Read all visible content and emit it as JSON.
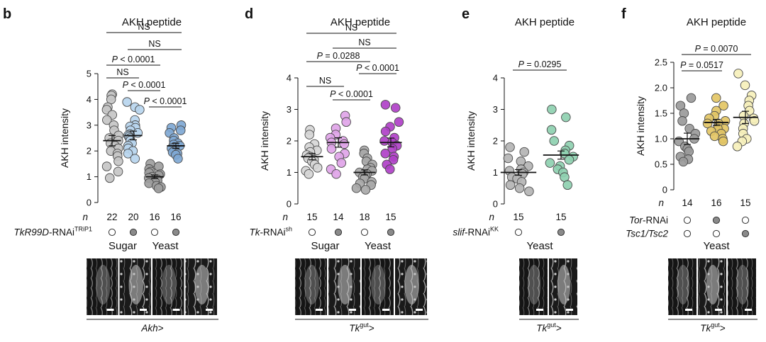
{
  "chart_data": [
    {
      "panel": "b",
      "type": "scatter",
      "title": "AKH peptide",
      "ylabel": "AKH intensity",
      "ylim": [
        0,
        5
      ],
      "yticks": [
        0,
        1,
        2,
        3,
        4,
        5
      ],
      "n_label": "n",
      "genotype_label": "TkR99D-RNAi",
      "genotype_sup": "TRiP1",
      "groups": [
        {
          "name": "Sugar",
          "conditions": [
            0,
            1
          ]
        },
        {
          "name": "Yeast",
          "conditions": [
            2,
            3
          ]
        }
      ],
      "driver": "Akh>",
      "conditions": [
        {
          "n": "22",
          "rnai": false,
          "color": "#c6c6c6",
          "mean": 2.4,
          "sem": 0.2,
          "values": [
            4.2,
            4.15,
            4.0,
            3.7,
            3.6,
            3.4,
            3.2,
            3.0,
            2.8,
            2.6,
            2.5,
            2.4,
            2.3,
            2.2,
            2.1,
            2.0,
            1.9,
            1.8,
            1.6,
            1.4,
            1.2,
            0.95
          ]
        },
        {
          "n": "20",
          "rnai": true,
          "color": "#b7d5ee",
          "mean": 2.6,
          "sem": 0.17,
          "values": [
            3.9,
            3.7,
            3.6,
            3.2,
            3.0,
            2.95,
            2.9,
            2.8,
            2.7,
            2.65,
            2.6,
            2.55,
            2.5,
            2.4,
            2.3,
            2.2,
            2.1,
            2.0,
            1.9,
            1.7
          ]
        },
        {
          "n": "16",
          "rnai": false,
          "color": "#9e9e9e",
          "mean": 1.0,
          "sem": 0.07,
          "values": [
            1.5,
            1.4,
            1.3,
            1.2,
            1.15,
            1.1,
            1.05,
            1.0,
            0.95,
            0.9,
            0.85,
            0.8,
            0.75,
            0.65,
            0.6,
            0.55
          ]
        },
        {
          "n": "16",
          "rnai": true,
          "color": "#7fa8d4",
          "mean": 2.2,
          "sem": 0.1,
          "values": [
            3.0,
            2.9,
            2.8,
            2.7,
            2.5,
            2.4,
            2.3,
            2.25,
            2.2,
            2.15,
            2.1,
            2.0,
            1.95,
            1.9,
            1.85,
            1.7
          ]
        }
      ],
      "comparisons": [
        {
          "a": 0,
          "b": 3,
          "label": "NS"
        },
        {
          "a": 1,
          "b": 3,
          "label": "NS"
        },
        {
          "a": 0,
          "b": 2,
          "label": "P < 0.0001"
        },
        {
          "a": 0,
          "b": 1,
          "label": "NS"
        },
        {
          "a": 1,
          "b": 2,
          "label": "P < 0.0001"
        },
        {
          "a": 2,
          "b": 3,
          "label": "P < 0.0001"
        }
      ]
    },
    {
      "panel": "d",
      "type": "scatter",
      "title": "AKH peptide",
      "ylabel": "AKH intensity",
      "ylim": [
        0,
        4
      ],
      "yticks": [
        0,
        1,
        2,
        3,
        4
      ],
      "n_label": "n",
      "genotype_label": "Tk-RNAi",
      "genotype_sup": "sh",
      "groups": [
        {
          "name": "Sugar",
          "conditions": [
            0,
            1
          ]
        },
        {
          "name": "Yeast",
          "conditions": [
            2,
            3
          ]
        }
      ],
      "driver": "Tkgut>",
      "conditions": [
        {
          "n": "15",
          "rnai": false,
          "color": "#d6d6d6",
          "mean": 1.5,
          "sem": 0.1,
          "values": [
            2.35,
            2.2,
            1.9,
            1.8,
            1.7,
            1.65,
            1.55,
            1.5,
            1.45,
            1.4,
            1.35,
            1.25,
            1.15,
            1.05,
            0.95
          ]
        },
        {
          "n": "14",
          "rnai": true,
          "color": "#e0a4e8",
          "mean": 1.95,
          "sem": 0.15,
          "values": [
            2.8,
            2.6,
            2.4,
            2.2,
            2.1,
            2.0,
            1.95,
            1.9,
            1.75,
            1.6,
            1.5,
            1.3,
            1.1,
            0.95
          ]
        },
        {
          "n": "18",
          "rnai": false,
          "color": "#a8a8a8",
          "mean": 1.0,
          "sem": 0.08,
          "values": [
            1.7,
            1.6,
            1.45,
            1.35,
            1.25,
            1.15,
            1.1,
            1.05,
            1.0,
            0.95,
            0.9,
            0.85,
            0.8,
            0.7,
            0.65,
            0.6,
            0.5,
            0.45
          ]
        },
        {
          "n": "15",
          "rnai": true,
          "color": "#b040c8",
          "mean": 1.95,
          "sem": 0.14,
          "values": [
            3.15,
            3.05,
            2.6,
            2.45,
            2.3,
            2.1,
            2.0,
            1.95,
            1.85,
            1.75,
            1.6,
            1.5,
            1.4,
            1.25,
            1.1
          ]
        }
      ],
      "comparisons": [
        {
          "a": 0,
          "b": 3,
          "label": "NS"
        },
        {
          "a": 1,
          "b": 3,
          "label": "NS"
        },
        {
          "a": 0,
          "b": 2,
          "label": "P = 0.0288"
        },
        {
          "a": 2,
          "b": 3,
          "label": "P < 0.0001"
        },
        {
          "a": 0,
          "b": 1,
          "label": "NS"
        },
        {
          "a": 1,
          "b": 2,
          "label": "P < 0.0001"
        }
      ]
    },
    {
      "panel": "e",
      "type": "scatter",
      "title": "AKH peptide",
      "ylabel": "AKH intensity",
      "ylim": [
        0,
        4
      ],
      "yticks": [
        0,
        1,
        2,
        3,
        4
      ],
      "n_label": "n",
      "genotype_label": "slif-RNAi",
      "genotype_sup": "KK",
      "groups": [
        {
          "name": "Yeast",
          "conditions": [
            0,
            1
          ]
        }
      ],
      "driver": "Tkgut>",
      "conditions": [
        {
          "n": "15",
          "rnai": false,
          "color": "#b4b4b4",
          "mean": 1.0,
          "sem": 0.09,
          "values": [
            1.8,
            1.65,
            1.45,
            1.35,
            1.2,
            1.1,
            1.05,
            1.0,
            0.95,
            0.85,
            0.8,
            0.7,
            0.6,
            0.5,
            0.4
          ]
        },
        {
          "n": "15",
          "rnai": true,
          "color": "#8ed0b0",
          "mean": 1.55,
          "sem": 0.13,
          "values": [
            3.0,
            2.75,
            2.35,
            2.0,
            1.85,
            1.7,
            1.6,
            1.5,
            1.4,
            1.3,
            1.2,
            1.1,
            1.0,
            0.85,
            0.6
          ]
        }
      ],
      "comparisons": [
        {
          "a": 0,
          "b": 1,
          "label": "P = 0.0295"
        }
      ]
    },
    {
      "panel": "f",
      "type": "scatter",
      "title": "AKH peptide",
      "ylabel": "AKH intensity",
      "ylim": [
        0,
        2.5
      ],
      "yticks": [
        0,
        0.5,
        1.0,
        1.5,
        2.0,
        2.5
      ],
      "n_label": "n",
      "genotype_rows": [
        {
          "label": "Tor-RNAi",
          "filled": [
            false,
            true,
            false
          ]
        },
        {
          "label": "Tsc1/Tsc2",
          "filled": [
            false,
            false,
            true
          ]
        }
      ],
      "groups": [
        {
          "name": "Yeast",
          "conditions": [
            0,
            1,
            2
          ]
        }
      ],
      "driver": "Tkgut>",
      "conditions": [
        {
          "n": "14",
          "color": "#9a9a9a",
          "mean": 1.0,
          "sem": 0.11,
          "values": [
            1.8,
            1.65,
            1.5,
            1.35,
            1.2,
            1.1,
            1.0,
            0.95,
            0.85,
            0.8,
            0.75,
            0.65,
            0.6,
            0.55
          ]
        },
        {
          "n": "16",
          "color": "#e3c565",
          "mean": 1.32,
          "sem": 0.06,
          "values": [
            1.8,
            1.65,
            1.55,
            1.45,
            1.4,
            1.35,
            1.3,
            1.3,
            1.25,
            1.2,
            1.2,
            1.15,
            1.1,
            1.05,
            1.0,
            0.95
          ]
        },
        {
          "n": "15",
          "color": "#f6f0bb",
          "mean": 1.42,
          "sem": 0.12,
          "values": [
            2.28,
            2.05,
            1.85,
            1.75,
            1.65,
            1.55,
            1.45,
            1.4,
            1.35,
            1.3,
            1.2,
            1.1,
            1.0,
            0.95,
            0.85
          ]
        }
      ],
      "comparisons": [
        {
          "a": 0,
          "b": 2,
          "label": "P = 0.0070"
        },
        {
          "a": 0,
          "b": 1,
          "label": "P = 0.0517"
        }
      ]
    }
  ]
}
